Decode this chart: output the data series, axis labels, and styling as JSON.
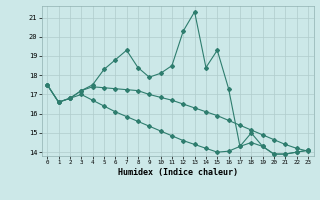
{
  "xlabel": "Humidex (Indice chaleur)",
  "x": [
    0,
    1,
    2,
    3,
    4,
    5,
    6,
    7,
    8,
    9,
    10,
    11,
    12,
    13,
    14,
    15,
    16,
    17,
    18,
    19,
    20,
    21,
    22,
    23
  ],
  "line1": [
    17.5,
    16.6,
    16.8,
    17.2,
    17.5,
    18.3,
    18.8,
    19.3,
    18.4,
    17.9,
    18.1,
    18.5,
    20.3,
    21.3,
    18.4,
    19.3,
    17.3,
    14.3,
    15.0,
    14.3,
    13.9,
    13.9,
    14.0,
    14.1
  ],
  "line2": [
    17.5,
    16.6,
    16.8,
    17.2,
    17.4,
    17.35,
    17.3,
    17.25,
    17.2,
    17.0,
    16.85,
    16.7,
    16.5,
    16.3,
    16.1,
    15.9,
    15.65,
    15.4,
    15.15,
    14.9,
    14.65,
    14.4,
    14.2,
    14.05
  ],
  "line3": [
    17.5,
    16.6,
    16.8,
    17.0,
    16.7,
    16.4,
    16.1,
    15.85,
    15.6,
    15.35,
    15.1,
    14.85,
    14.6,
    14.4,
    14.2,
    14.0,
    14.05,
    14.3,
    14.5,
    14.3,
    13.9,
    13.9,
    14.0,
    14.1
  ],
  "line_color": "#2e7d6e",
  "bg_color": "#cce8e8",
  "grid_color": "#b0cccc",
  "ylim": [
    13.8,
    21.6
  ],
  "xlim": [
    -0.5,
    23.5
  ],
  "yticks": [
    14,
    15,
    16,
    17,
    18,
    19,
    20,
    21
  ],
  "xticks": [
    0,
    1,
    2,
    3,
    4,
    5,
    6,
    7,
    8,
    9,
    10,
    11,
    12,
    13,
    14,
    15,
    16,
    17,
    18,
    19,
    20,
    21,
    22,
    23
  ]
}
